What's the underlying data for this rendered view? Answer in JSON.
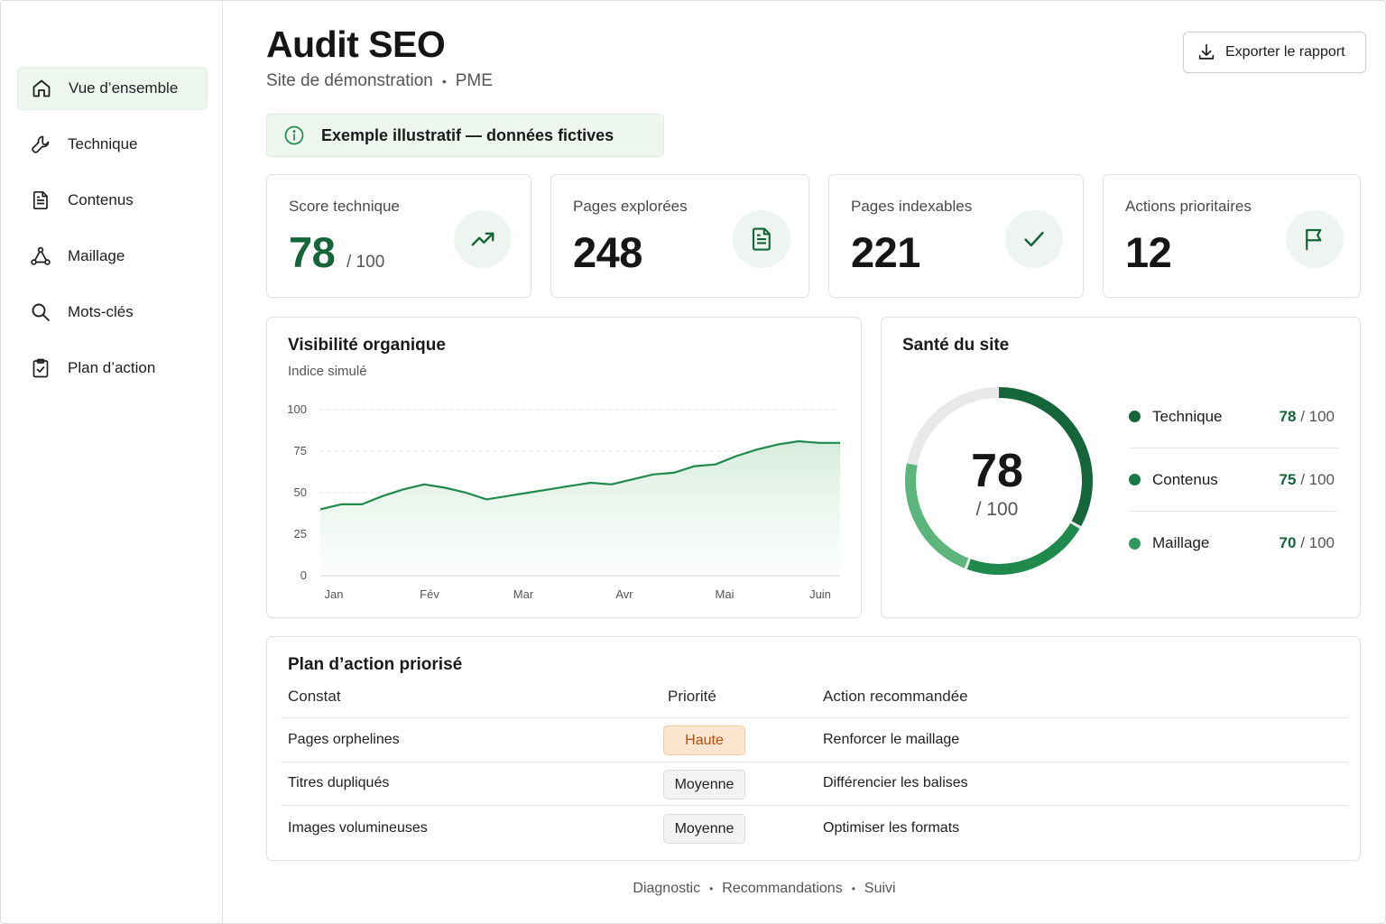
{
  "sidebar": {
    "items": [
      {
        "label": "Vue d’ensemble",
        "icon": "home-icon",
        "active": true
      },
      {
        "label": "Technique",
        "icon": "wrench-icon"
      },
      {
        "label": "Contenus",
        "icon": "document-icon"
      },
      {
        "label": "Maillage",
        "icon": "network-icon"
      },
      {
        "label": "Mots-clés",
        "icon": "search-icon"
      },
      {
        "label": "Plan d’action",
        "icon": "clipboard-check-icon"
      }
    ]
  },
  "header": {
    "title": "Audit SEO",
    "subtitle_site": "Site de démonstration",
    "subtitle_sep": "•",
    "subtitle_segment": "PME",
    "export_label": "Exporter le rapport"
  },
  "notice": {
    "text": "Exemple illustratif — données fictives",
    "icon": "info-icon"
  },
  "kpis": [
    {
      "label": "Score technique",
      "value": "78",
      "suffix": "/ 100",
      "icon": "trend-up-icon"
    },
    {
      "label": "Pages explorées",
      "value": "248",
      "icon": "document-icon"
    },
    {
      "label": "Pages indexables",
      "value": "221",
      "icon": "check-icon"
    },
    {
      "label": "Actions prioritaires",
      "value": "12",
      "icon": "flag-icon"
    }
  ],
  "visibility": {
    "title": "Visibilité organique",
    "subtitle": "Indice simulé"
  },
  "chart_data": {
    "type": "area",
    "title": "Visibilité organique",
    "subtitle": "Indice simulé",
    "categories": [
      "Jan",
      "Fév",
      "Mar",
      "Avr",
      "Mai",
      "Juin"
    ],
    "x": [
      0,
      0.2,
      0.4,
      0.6,
      0.8,
      1.0,
      1.2,
      1.4,
      1.6,
      1.8,
      2.0,
      2.2,
      2.4,
      2.6,
      2.8,
      3.0,
      3.2,
      3.4,
      3.6,
      3.8,
      4.0,
      4.2,
      4.4,
      4.6,
      4.8,
      5.0
    ],
    "series": [
      {
        "values": [
          40,
          43,
          43,
          48,
          52,
          55,
          53,
          50,
          46,
          48,
          50,
          52,
          54,
          56,
          55,
          58,
          61,
          62,
          66,
          67,
          72,
          76,
          79,
          81,
          80,
          80
        ]
      }
    ],
    "yticks": [
      0,
      25,
      50,
      75,
      100
    ],
    "ylim": [
      0,
      100
    ],
    "grid": true,
    "color": "#1f8a4c"
  },
  "health": {
    "title": "Santé du site",
    "score": "78",
    "score_suffix": "/ 100",
    "donut_value": 78,
    "items": [
      {
        "name": "Technique",
        "score": "78",
        "suffix": "/ 100",
        "color": "#15653a"
      },
      {
        "name": "Contenus",
        "score": "75",
        "suffix": "/ 100",
        "color": "#1a7a43"
      },
      {
        "name": "Maillage",
        "score": "70",
        "suffix": "/ 100",
        "color": "#2f9a5c"
      }
    ]
  },
  "plan": {
    "title": "Plan d’action priorisé",
    "columns": [
      "Constat",
      "Priorité",
      "Action recommandée"
    ],
    "rows": [
      {
        "constat": "Pages orphelines",
        "priorite": "Haute",
        "level": "high",
        "action": "Renforcer le maillage"
      },
      {
        "constat": "Titres dupliqués",
        "priorite": "Moyenne",
        "level": "mid",
        "action": "Différencier les balises"
      },
      {
        "constat": "Images volumineuses",
        "priorite": "Moyenne",
        "level": "mid",
        "action": "Optimiser les formats"
      }
    ]
  },
  "footer": {
    "items": [
      "Diagnostic",
      "Recommandations",
      "Suivi"
    ],
    "sep": "•"
  },
  "colors": {
    "accent": "#15653a",
    "accent_light": "#eef6f0",
    "chart_line": "#1f8a4c",
    "priority_high": "#b2510f"
  }
}
